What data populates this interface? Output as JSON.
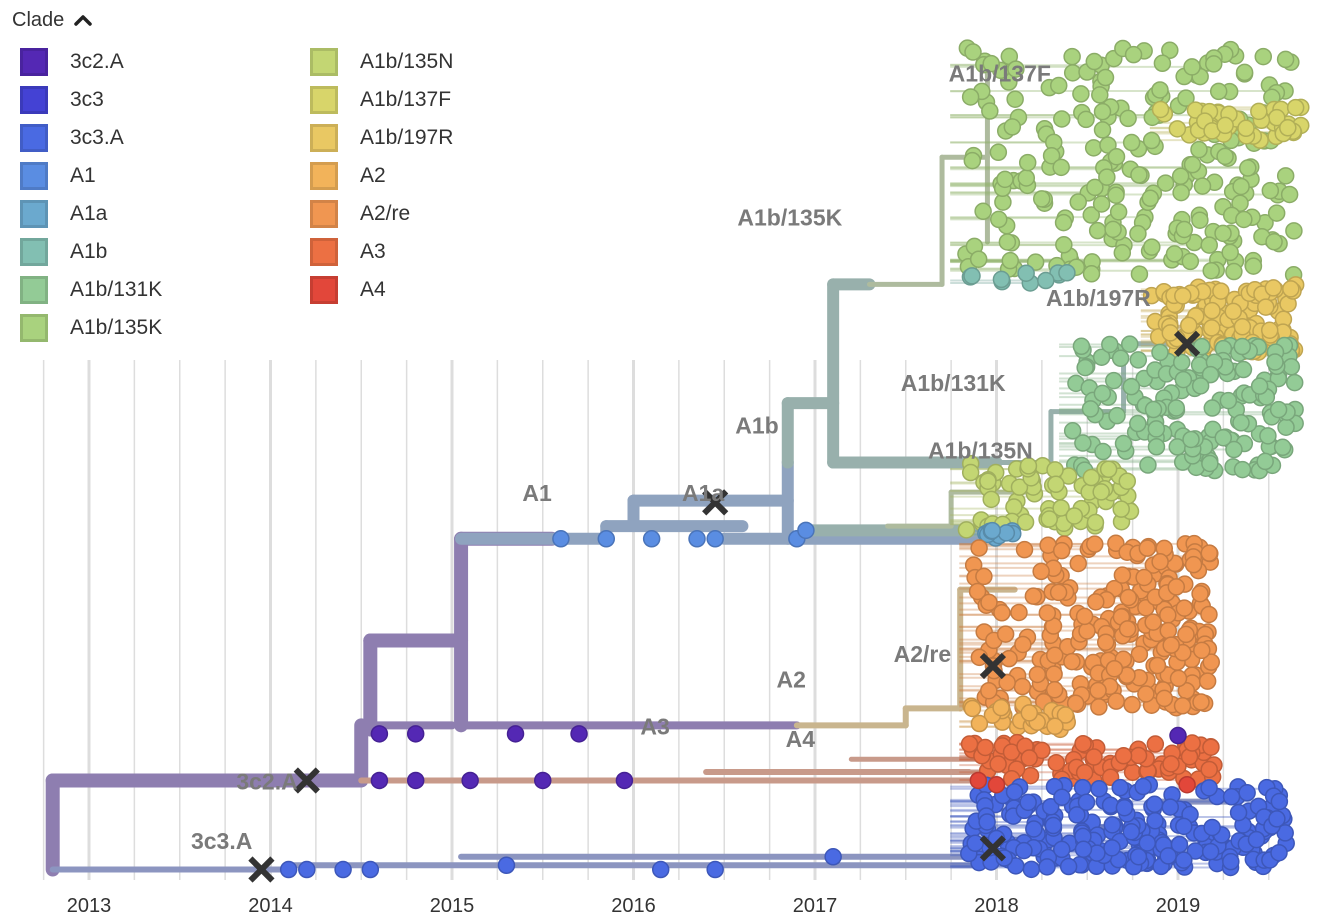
{
  "legend": {
    "title": "Clade",
    "toggle_icon": "chevron-up-icon",
    "items": [
      {
        "label": "3c2.A",
        "color": "#5428B4"
      },
      {
        "label": "3c3",
        "color": "#4442D4"
      },
      {
        "label": "3c3.A",
        "color": "#4A6AE2"
      },
      {
        "label": "A1",
        "color": "#5A8DE2"
      },
      {
        "label": "A1a",
        "color": "#6BA9CE"
      },
      {
        "label": "A1b",
        "color": "#82BFB2"
      },
      {
        "label": "A1b/131K",
        "color": "#93CB96"
      },
      {
        "label": "A1b/135K",
        "color": "#A9D27E"
      },
      {
        "label": "A1b/135N",
        "color": "#C3D673"
      },
      {
        "label": "A1b/137F",
        "color": "#D8D56A"
      },
      {
        "label": "A1b/197R",
        "color": "#E9C863"
      },
      {
        "label": "A2",
        "color": "#F2B35A"
      },
      {
        "label": "A2/re",
        "color": "#F09651"
      },
      {
        "label": "A3",
        "color": "#EC7043"
      },
      {
        "label": "A4",
        "color": "#E2473A"
      }
    ]
  },
  "chart_data": {
    "type": "phylogenetic-tree",
    "x_axis": {
      "label": "",
      "ticks": [
        "2013",
        "2014",
        "2015",
        "2016",
        "2017",
        "2018",
        "2019"
      ],
      "range": [
        2012.75,
        2019.7
      ],
      "minor_step": 0.25
    },
    "colors": {
      "purple_branch": "#8E7EB0",
      "a1_branch": "#8FA3BF",
      "a1b_branch": "#98B0AC",
      "k135_branch": "#AEBB9E",
      "a2_branch": "#C9B58E",
      "a3_branch": "#C89A8A",
      "c3a_branch": "#8C95C0",
      "x_marker": "#333333",
      "grid": "#dddddd"
    },
    "clade_labels": [
      {
        "text": "3c2.A",
        "date": 2014.15,
        "row": 0.905
      },
      {
        "text": "3c3.A",
        "date": 2013.9,
        "row": 0.975
      },
      {
        "text": "A1",
        "date": 2015.55,
        "row": 0.565
      },
      {
        "text": "A1a",
        "date": 2016.5,
        "row": 0.565
      },
      {
        "text": "A1b",
        "date": 2016.8,
        "row": 0.485
      },
      {
        "text": "A1b/135K",
        "date": 2017.15,
        "row": 0.24
      },
      {
        "text": "A1b/137F",
        "date": 2018.3,
        "row": 0.07
      },
      {
        "text": "A1b/197R",
        "date": 2018.85,
        "row": 0.335
      },
      {
        "text": "A1b/131K",
        "date": 2018.05,
        "row": 0.435
      },
      {
        "text": "A1b/135N",
        "date": 2018.2,
        "row": 0.515
      },
      {
        "text": "A2/re",
        "date": 2017.75,
        "row": 0.755
      },
      {
        "text": "A2",
        "date": 2016.95,
        "row": 0.785
      },
      {
        "text": "A3",
        "date": 2016.2,
        "row": 0.84
      },
      {
        "text": "A4",
        "date": 2017.0,
        "row": 0.855
      }
    ],
    "mutation_markers": [
      {
        "date": 2014.2,
        "row": 0.885
      },
      {
        "date": 2013.95,
        "row": 0.99
      },
      {
        "date": 2016.45,
        "row": 0.557
      },
      {
        "date": 2017.98,
        "row": 0.965
      },
      {
        "date": 2017.98,
        "row": 0.75
      },
      {
        "date": 2019.05,
        "row": 0.37
      }
    ],
    "branches": [
      {
        "clade": "root",
        "color_key": "purple_branch",
        "width": 14,
        "segments": [
          [
            2012.8,
            0.885,
            2012.8,
            0.99
          ],
          [
            2012.8,
            0.885,
            2014.2,
            0.885
          ],
          [
            2014.2,
            0.885,
            2014.5,
            0.885
          ],
          [
            2014.5,
            0.82,
            2014.5,
            0.885
          ],
          [
            2014.55,
            0.72,
            2014.55,
            0.825
          ],
          [
            2014.55,
            0.72,
            2015.05,
            0.72
          ],
          [
            2015.05,
            0.6,
            2015.05,
            0.82
          ],
          [
            2015.05,
            0.6,
            2015.55,
            0.6
          ]
        ]
      },
      {
        "clade": "3c2.A",
        "color_key": "purple_branch",
        "width": 8,
        "segments": [
          [
            2015.05,
            0.82,
            2016.9,
            0.82
          ],
          [
            2014.55,
            0.82,
            2015.0,
            0.82
          ]
        ]
      },
      {
        "clade": "A3",
        "color_key": "a3_branch",
        "width": 6,
        "segments": [
          [
            2014.5,
            0.885,
            2017.9,
            0.885
          ],
          [
            2016.4,
            0.875,
            2017.85,
            0.875
          ]
        ]
      },
      {
        "clade": "A1",
        "color_key": "a1_branch",
        "width": 12,
        "segments": [
          [
            2015.05,
            0.6,
            2015.85,
            0.6
          ],
          [
            2015.85,
            0.6,
            2015.85,
            0.585
          ],
          [
            2015.85,
            0.585,
            2016.6,
            0.585
          ],
          [
            2016.0,
            0.555,
            2016.0,
            0.585
          ],
          [
            2016.0,
            0.555,
            2016.85,
            0.555
          ],
          [
            2016.85,
            0.51,
            2016.85,
            0.6
          ],
          [
            2016.5,
            0.6,
            2017.9,
            0.6
          ]
        ]
      },
      {
        "clade": "A1b",
        "color_key": "a1b_branch",
        "width": 12,
        "segments": [
          [
            2016.85,
            0.44,
            2016.85,
            0.51
          ],
          [
            2016.85,
            0.44,
            2017.1,
            0.44
          ],
          [
            2017.1,
            0.3,
            2017.1,
            0.51
          ],
          [
            2017.1,
            0.3,
            2017.3,
            0.3
          ],
          [
            2017.1,
            0.51,
            2018.0,
            0.51
          ],
          [
            2016.95,
            0.59,
            2017.9,
            0.59
          ]
        ]
      },
      {
        "clade": "A1b/135K",
        "color_key": "k135_branch",
        "width": 5,
        "segments": [
          [
            2017.3,
            0.3,
            2017.7,
            0.3
          ],
          [
            2017.7,
            0.15,
            2017.7,
            0.3
          ],
          [
            2017.7,
            0.15,
            2017.95,
            0.15
          ],
          [
            2017.95,
            0.05,
            2017.95,
            0.25
          ]
        ]
      },
      {
        "clade": "A1b/131K",
        "color_key": "a1b_branch",
        "width": 5,
        "segments": [
          [
            2017.9,
            0.51,
            2018.3,
            0.51
          ],
          [
            2018.3,
            0.45,
            2018.3,
            0.51
          ],
          [
            2018.3,
            0.45,
            2018.7,
            0.45
          ],
          [
            2018.7,
            0.37,
            2018.7,
            0.45
          ],
          [
            2018.7,
            0.37,
            2019.0,
            0.37
          ]
        ]
      },
      {
        "clade": "A1b/197R",
        "color_key": "a2_branch",
        "width": 4,
        "segments": [
          [
            2018.9,
            0.35,
            2018.9,
            0.37
          ],
          [
            2018.9,
            0.35,
            2019.1,
            0.35
          ]
        ]
      },
      {
        "clade": "A1b/135N",
        "color_key": "k135_branch",
        "width": 5,
        "segments": [
          [
            2017.4,
            0.585,
            2017.75,
            0.585
          ],
          [
            2017.75,
            0.545,
            2017.75,
            0.585
          ],
          [
            2017.75,
            0.545,
            2018.2,
            0.545
          ]
        ]
      },
      {
        "clade": "A2",
        "color_key": "a2_branch",
        "width": 6,
        "segments": [
          [
            2016.9,
            0.82,
            2017.5,
            0.82
          ],
          [
            2017.5,
            0.8,
            2017.5,
            0.82
          ],
          [
            2017.5,
            0.8,
            2017.8,
            0.8
          ],
          [
            2017.8,
            0.66,
            2017.8,
            0.8
          ],
          [
            2017.8,
            0.66,
            2018.1,
            0.66
          ]
        ]
      },
      {
        "clade": "A4",
        "color_key": "a3_branch",
        "width": 5,
        "segments": [
          [
            2016.9,
            0.875,
            2017.9,
            0.875
          ],
          [
            2017.2,
            0.86,
            2017.9,
            0.86
          ]
        ]
      },
      {
        "clade": "3c3.A",
        "color_key": "c3a_branch",
        "width": 6,
        "segments": [
          [
            2012.8,
            0.99,
            2014.1,
            0.99
          ],
          [
            2014.1,
            0.985,
            2017.9,
            0.985
          ],
          [
            2015.05,
            0.975,
            2017.9,
            0.975
          ],
          [
            2017.9,
            0.955,
            2018.5,
            0.955
          ],
          [
            2018.5,
            0.94,
            2018.5,
            0.96
          ],
          [
            2018.5,
            0.94,
            2018.9,
            0.94
          ],
          [
            2018.9,
            0.91,
            2019.3,
            0.91
          ]
        ]
      }
    ],
    "tips": [
      {
        "clade": "3c3.A",
        "points": [
          [
            2014.1,
            0.99
          ],
          [
            2014.2,
            0.99
          ],
          [
            2014.4,
            0.99
          ],
          [
            2014.55,
            0.99
          ],
          [
            2015.3,
            0.985
          ],
          [
            2016.15,
            0.99
          ],
          [
            2016.45,
            0.99
          ],
          [
            2017.1,
            0.975
          ]
        ]
      },
      {
        "clade": "3c2.A",
        "points": [
          [
            2014.6,
            0.83
          ],
          [
            2014.8,
            0.83
          ],
          [
            2015.35,
            0.83
          ],
          [
            2015.7,
            0.83
          ],
          [
            2014.6,
            0.885
          ],
          [
            2014.8,
            0.885
          ],
          [
            2015.1,
            0.885
          ],
          [
            2015.5,
            0.885
          ],
          [
            2015.95,
            0.885
          ],
          [
            2019.0,
            0.832
          ]
        ]
      },
      {
        "clade": "A1",
        "points": [
          [
            2015.6,
            0.6
          ],
          [
            2015.85,
            0.6
          ],
          [
            2016.1,
            0.6
          ],
          [
            2016.45,
            0.6
          ],
          [
            2016.35,
            0.6
          ],
          [
            2016.9,
            0.6
          ],
          [
            2016.95,
            0.59
          ]
        ]
      },
      {
        "clade": "A4",
        "points": [
          [
            2017.9,
            0.885
          ],
          [
            2018.0,
            0.89
          ],
          [
            2019.05,
            0.89
          ]
        ]
      }
    ],
    "tip_clusters": [
      {
        "clade": "A1b/135K",
        "date_range": [
          2017.8,
          2019.65
        ],
        "row_range": [
          0.02,
          0.29
        ],
        "count": 240,
        "seed": 11
      },
      {
        "clade": "A1b/137F",
        "date_range": [
          2018.9,
          2019.7
        ],
        "row_range": [
          0.09,
          0.13
        ],
        "count": 45,
        "seed": 12
      },
      {
        "clade": "A1b",
        "date_range": [
          2017.8,
          2018.4
        ],
        "row_range": [
          0.285,
          0.3
        ],
        "count": 10,
        "seed": 13
      },
      {
        "clade": "A1b/197R",
        "date_range": [
          2018.85,
          2019.65
        ],
        "row_range": [
          0.3,
          0.38
        ],
        "count": 120,
        "seed": 14
      },
      {
        "clade": "A1b/131K",
        "date_range": [
          2018.4,
          2019.65
        ],
        "row_range": [
          0.37,
          0.52
        ],
        "count": 160,
        "seed": 15
      },
      {
        "clade": "A1b/135N",
        "date_range": [
          2017.8,
          2018.75
        ],
        "row_range": [
          0.51,
          0.595
        ],
        "count": 75,
        "seed": 16
      },
      {
        "clade": "A1a",
        "date_range": [
          2017.9,
          2018.1
        ],
        "row_range": [
          0.59,
          0.6
        ],
        "count": 10,
        "seed": 17
      },
      {
        "clade": "A2/re",
        "date_range": [
          2017.85,
          2019.2
        ],
        "row_range": [
          0.605,
          0.8
        ],
        "count": 260,
        "seed": 18
      },
      {
        "clade": "A2",
        "date_range": [
          2017.85,
          2018.4
        ],
        "row_range": [
          0.795,
          0.825
        ],
        "count": 30,
        "seed": 19
      },
      {
        "clade": "A3",
        "date_range": [
          2017.85,
          2019.2
        ],
        "row_range": [
          0.84,
          0.885
        ],
        "count": 90,
        "seed": 20
      },
      {
        "clade": "3c3.A",
        "date_range": [
          2017.8,
          2019.6
        ],
        "row_range": [
          0.89,
          0.99
        ],
        "count": 230,
        "seed": 21
      }
    ]
  }
}
